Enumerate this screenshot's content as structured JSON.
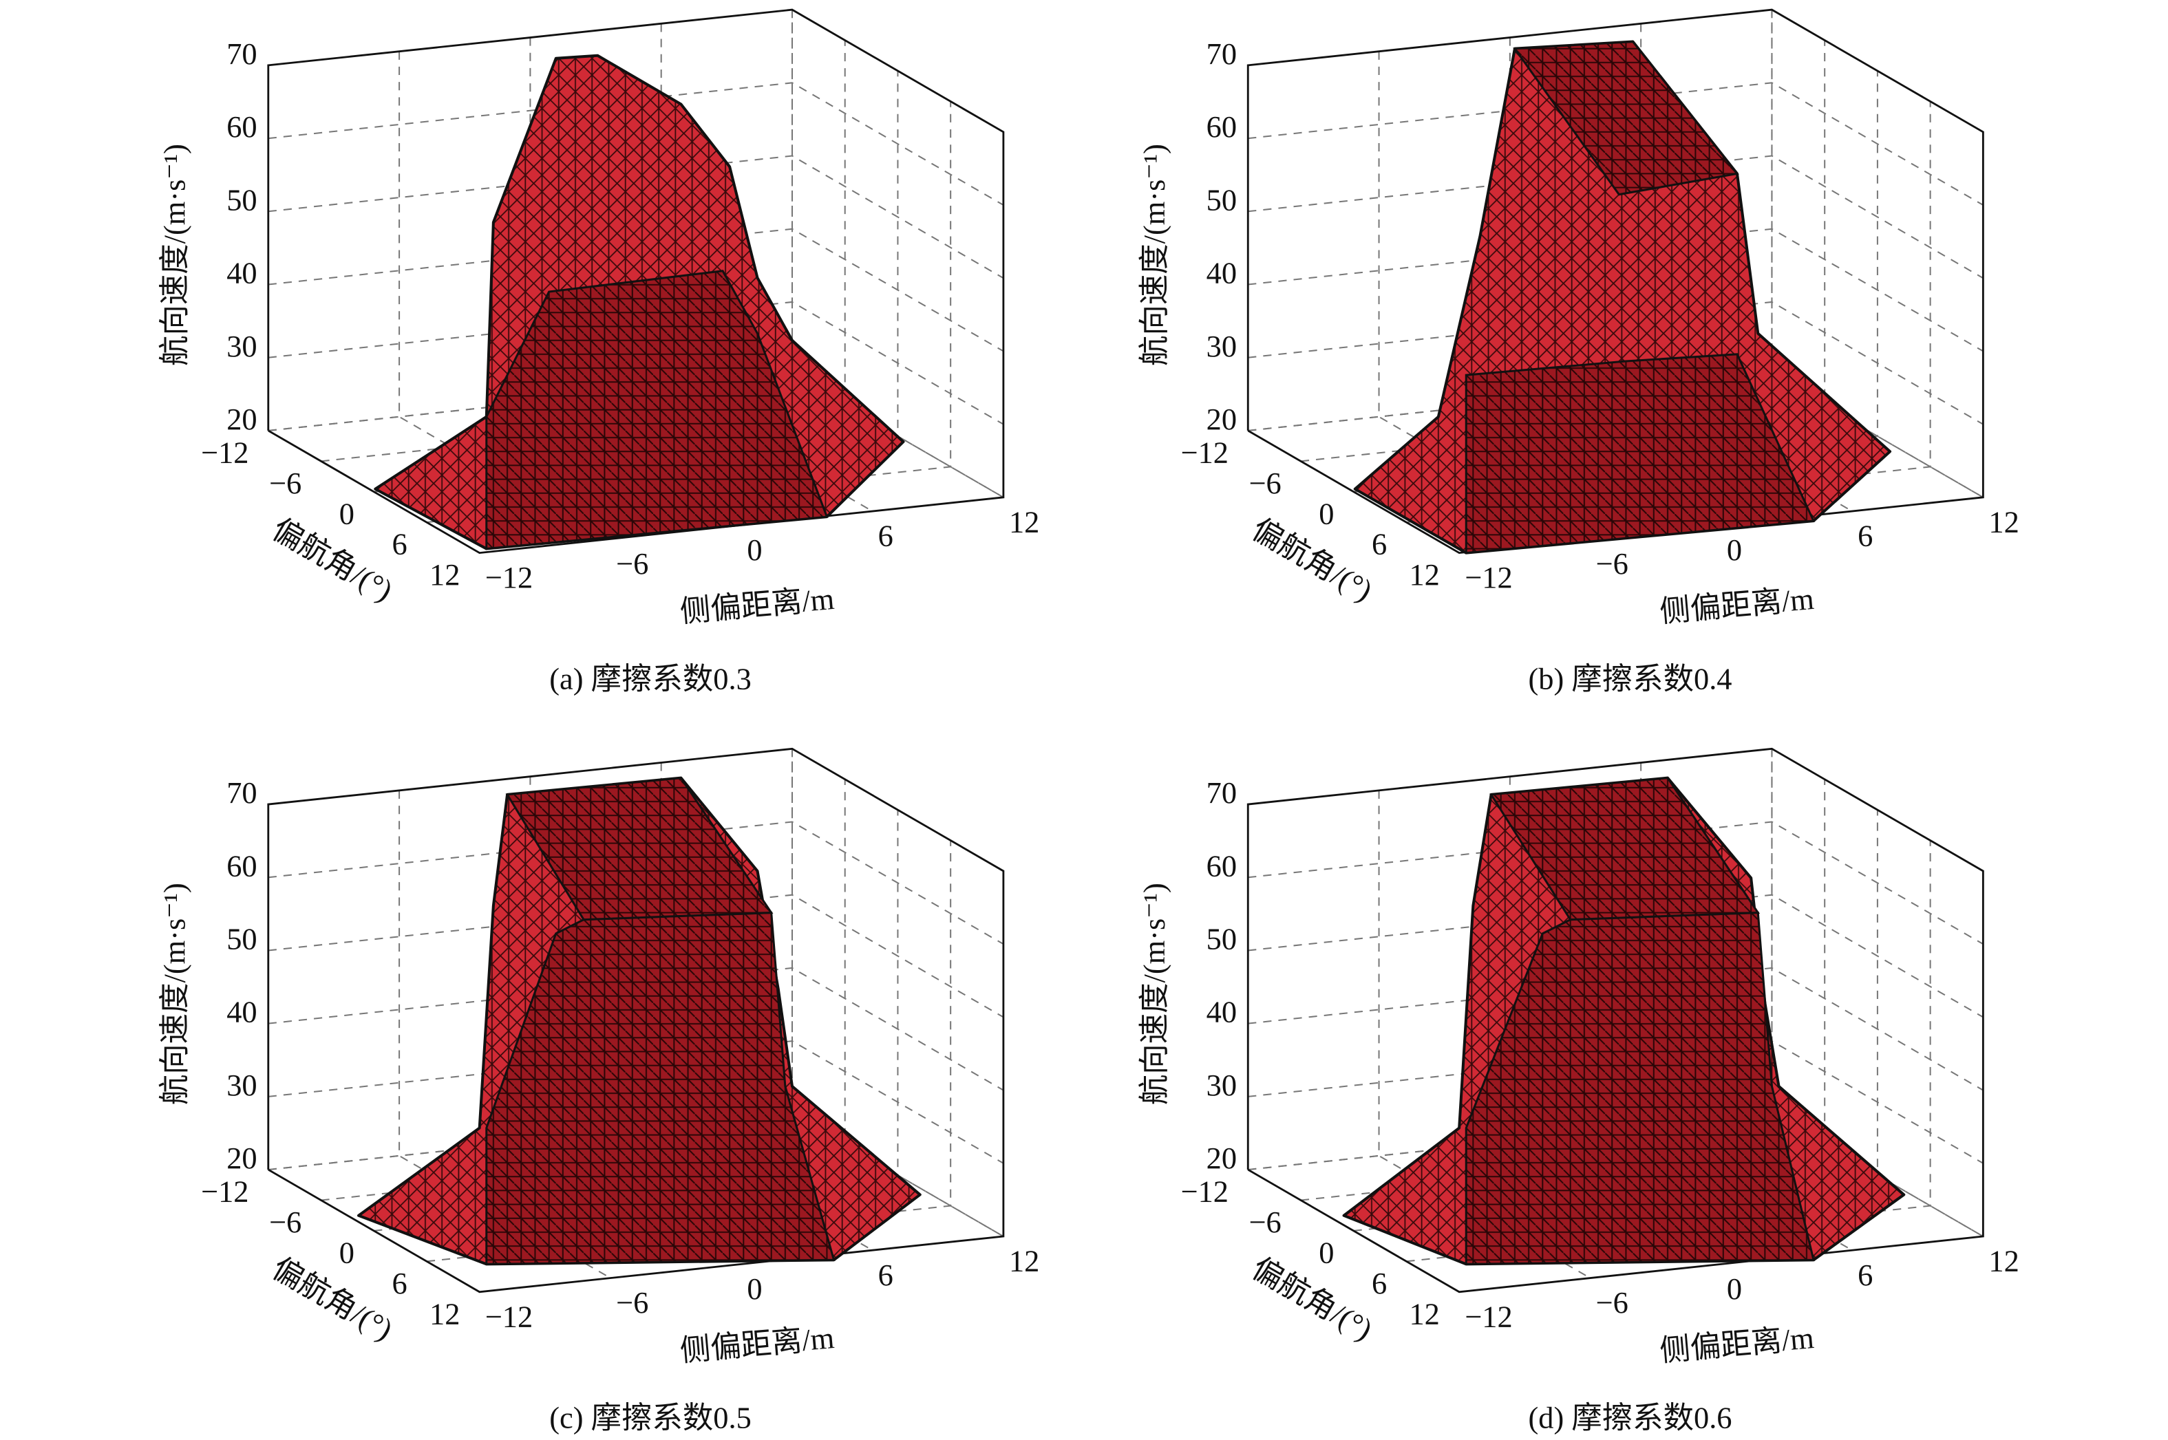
{
  "chart_data": [
    {
      "type": "surface3d",
      "caption": "(a) 摩擦系数0.3",
      "xlabel": "侧偏距离/m",
      "ylabel": "偏航角/(°)",
      "zlabel": "航向速度/(m·s⁻¹)",
      "xlim": [
        -12,
        12
      ],
      "ylim": [
        -12,
        12
      ],
      "zlim": [
        20,
        70
      ],
      "xticks": [
        {
          "value": -12,
          "label": "−12"
        },
        {
          "value": -6,
          "label": "−6"
        },
        0,
        6,
        12
      ],
      "yticks": [
        {
          "value": -12,
          "label": "−12"
        },
        {
          "value": -6,
          "label": "−6"
        },
        0,
        6,
        12
      ],
      "zticks": [
        20,
        30,
        40,
        50,
        60,
        70
      ],
      "grid": true,
      "color": "#c8202a"
    },
    {
      "type": "surface3d",
      "caption": "(b) 摩擦系数0.4",
      "xlabel": "侧偏距离/m",
      "ylabel": "偏航角/(°)",
      "zlabel": "航向速度/(m·s⁻¹)",
      "xlim": [
        -12,
        12
      ],
      "ylim": [
        -12,
        12
      ],
      "zlim": [
        20,
        70
      ],
      "xticks": [
        {
          "value": -12,
          "label": "−12"
        },
        {
          "value": -6,
          "label": "−6"
        },
        0,
        6,
        12
      ],
      "yticks": [
        {
          "value": -12,
          "label": "−12"
        },
        {
          "value": -6,
          "label": "−6"
        },
        0,
        6,
        12
      ],
      "zticks": [
        20,
        30,
        40,
        50,
        60,
        70
      ],
      "grid": true,
      "color": "#c8202a"
    },
    {
      "type": "surface3d",
      "caption": "(c) 摩擦系数0.5",
      "xlabel": "侧偏距离/m",
      "ylabel": "偏航角/(°)",
      "zlabel": "航向速度/(m·s⁻¹)",
      "xlim": [
        -12,
        12
      ],
      "ylim": [
        -12,
        12
      ],
      "zlim": [
        20,
        70
      ],
      "xticks": [
        {
          "value": -12,
          "label": "−12"
        },
        {
          "value": -6,
          "label": "−6"
        },
        0,
        6,
        12
      ],
      "yticks": [
        {
          "value": -12,
          "label": "−12"
        },
        {
          "value": -6,
          "label": "−6"
        },
        0,
        6,
        12
      ],
      "zticks": [
        20,
        30,
        40,
        50,
        60,
        70
      ],
      "grid": true,
      "color": "#c8202a"
    },
    {
      "type": "surface3d",
      "caption": "(d) 摩擦系数0.6",
      "xlabel": "侧偏距离/m",
      "ylabel": "偏航角/(°)",
      "zlabel": "航向速度/(m·s⁻¹)",
      "xlim": [
        -12,
        12
      ],
      "ylim": [
        -12,
        12
      ],
      "zlim": [
        20,
        70
      ],
      "xticks": [
        {
          "value": -12,
          "label": "−12"
        },
        {
          "value": -6,
          "label": "−6"
        },
        0,
        6,
        12
      ],
      "yticks": [
        {
          "value": -12,
          "label": "−12"
        },
        {
          "value": -6,
          "label": "−6"
        },
        0,
        6,
        12
      ],
      "zticks": [
        20,
        30,
        40,
        50,
        60,
        70
      ],
      "grid": true,
      "color": "#c8202a"
    }
  ]
}
